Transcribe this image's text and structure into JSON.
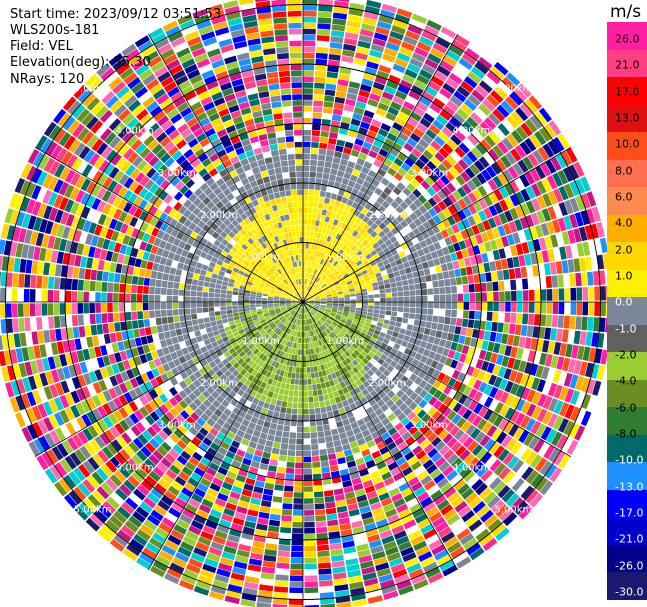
{
  "header": {
    "start_time": "Start time: 2023/09/12 03:51:53",
    "instrument": "WLS200s-181",
    "field": "Field: VEL",
    "elevation": "Elevation(deg): 35.30",
    "nrays": "NRays: 120"
  },
  "chart_data": {
    "type": "heatmap",
    "subtype": "ppi_polar",
    "field": "VEL",
    "units": "m/s",
    "n_rays": 120,
    "elevation_deg": 35.3,
    "range_rings_km": [
      1.0,
      2.0,
      3.0,
      4.0,
      5.0
    ],
    "ring_labels": [
      "1.00km",
      "2.00km",
      "3.00km",
      "4.00km",
      "5.00km"
    ],
    "spoke_angles_deg": [
      0,
      30,
      60,
      90,
      120,
      150,
      180,
      210,
      240,
      270,
      300,
      330
    ],
    "max_range_km": 5.2,
    "pattern": {
      "north_lobe_velocity": 2.0,
      "south_lobe_velocity": -2.0,
      "lobe_extent_km": 1.9,
      "noise_beyond_km": 2.6
    },
    "colorbar": {
      "unit": "m/s",
      "ticks": [
        "26.0",
        "21.0",
        "17.0",
        "13.0",
        "10.0",
        "8.0",
        "6.0",
        "4.0",
        "2.0",
        "1.0",
        "0.0",
        "-1.0",
        "-2.0",
        "-4.0",
        "-6.0",
        "-8.0",
        "-10.0",
        "-13.0",
        "-17.0",
        "-21.0",
        "-26.0",
        "-30.0"
      ],
      "segments": [
        {
          "color": "#ff1fa0"
        },
        {
          "color": "#ff3f7f"
        },
        {
          "color": "#ff0000"
        },
        {
          "color": "#e11010"
        },
        {
          "color": "#ff4e1a"
        },
        {
          "color": "#ff6f4f"
        },
        {
          "color": "#ff8a50"
        },
        {
          "color": "#ffae00"
        },
        {
          "color": "#ffd700"
        },
        {
          "color": "#fff000"
        },
        {
          "color": "#7a8799"
        },
        {
          "color": "#606060"
        },
        {
          "color": "#9acd32"
        },
        {
          "color": "#6b8e23"
        },
        {
          "color": "#2e7d32"
        },
        {
          "color": "#006a6a"
        },
        {
          "color": "#1e90ff"
        },
        {
          "color": "#0000ff"
        },
        {
          "color": "#0000cd"
        },
        {
          "color": "#00008b"
        },
        {
          "color": "#191970"
        }
      ]
    }
  }
}
